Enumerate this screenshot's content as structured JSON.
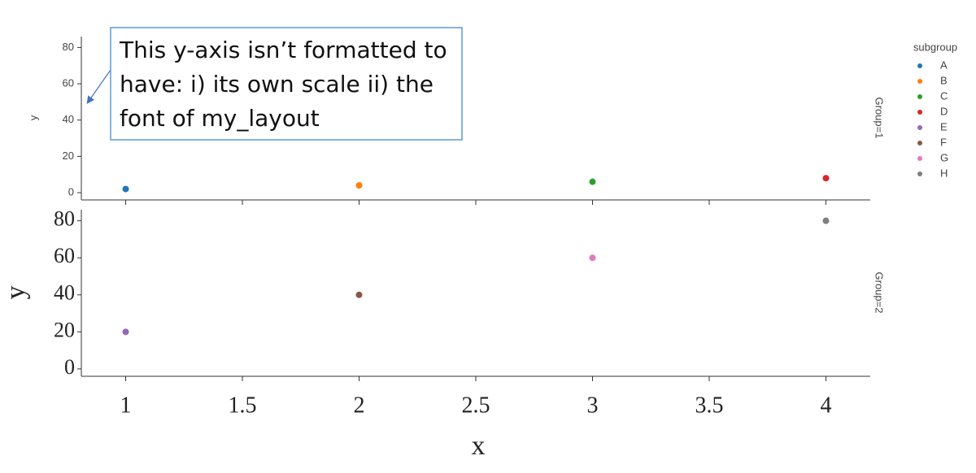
{
  "chart_data": [
    {
      "type": "scatter",
      "facet_label": "Group=1",
      "ylabel": "y",
      "legend_title": "subgroup",
      "annotation": "This y-axis isn’t formatted to have: i) its own scale ii) the font of my_layout",
      "xlim": [
        0.81,
        4.19
      ],
      "ylim": [
        -4,
        86
      ],
      "yticks": [
        0,
        20,
        40,
        60,
        80
      ],
      "series": [
        {
          "name": "A",
          "color": "#1f77b4",
          "x": [
            1
          ],
          "values": [
            2
          ]
        },
        {
          "name": "B",
          "color": "#ff7f0e",
          "x": [
            2
          ],
          "values": [
            4
          ]
        },
        {
          "name": "C",
          "color": "#2ca02c",
          "x": [
            3
          ],
          "values": [
            6
          ]
        },
        {
          "name": "D",
          "color": "#d62728",
          "x": [
            4
          ],
          "values": [
            8
          ]
        }
      ]
    },
    {
      "type": "scatter",
      "facet_label": "Group=2",
      "ylabel": "y",
      "xlabel": "x",
      "xlim": [
        0.81,
        4.19
      ],
      "ylim": [
        -4,
        86
      ],
      "yticks": [
        0,
        20,
        40,
        60,
        80
      ],
      "xticks": [
        1,
        1.5,
        2,
        2.5,
        3,
        3.5,
        4
      ],
      "series": [
        {
          "name": "E",
          "color": "#9467bd",
          "x": [
            1
          ],
          "values": [
            20
          ]
        },
        {
          "name": "F",
          "color": "#8c564b",
          "x": [
            2
          ],
          "values": [
            40
          ]
        },
        {
          "name": "G",
          "color": "#e377c2",
          "x": [
            3
          ],
          "values": [
            60
          ]
        },
        {
          "name": "H",
          "color": "#7f7f7f",
          "x": [
            4
          ],
          "values": [
            80
          ]
        }
      ]
    }
  ]
}
